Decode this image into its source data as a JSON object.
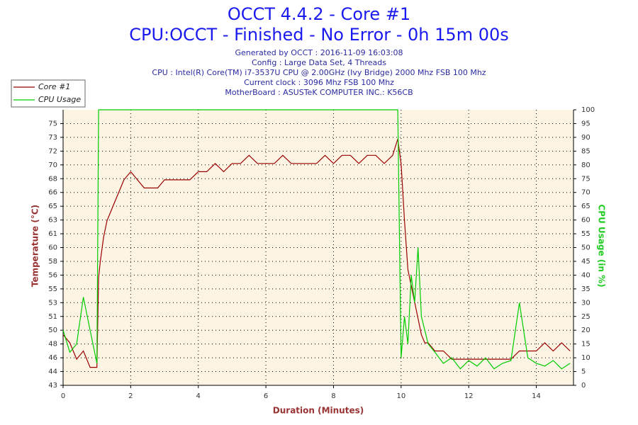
{
  "chart_data": {
    "type": "line",
    "title": "OCCT 4.4.2 - Core #1",
    "subtitle": "CPU:OCCT - Finished - No Error - 0h 15m 00s",
    "info": [
      "Generated by OCCT : 2016-11-09 16:03:08",
      "Config : Large Data Set, 4 Threads",
      "CPU : Intel(R) Core(TM) i7-3537U CPU @ 2.00GHz (Ivy Bridge) 2000 Mhz FSB 100 Mhz",
      "Current clock : 3096 Mhz FSB 100 Mhz",
      "MotherBoard : ASUSTeK COMPUTER INC.: K56CB"
    ],
    "x_label": "Duration (Minutes)",
    "y_label": "Temperature (°C)",
    "y2_label": "CPU Usage (in %)",
    "grid": true,
    "legend": "top-left",
    "xlim": [
      0,
      15.1
    ],
    "xticks": [
      0,
      2,
      4,
      6,
      8,
      10,
      12,
      14
    ],
    "ylim": [
      42.79,
      76.59
    ],
    "yticks": [
      {
        "value": 42.79,
        "label": "43"
      },
      {
        "value": 44.48,
        "label": "44"
      },
      {
        "value": 46.17,
        "label": "46"
      },
      {
        "value": 47.86,
        "label": "48"
      },
      {
        "value": 49.55,
        "label": "50"
      },
      {
        "value": 51.24,
        "label": "51"
      },
      {
        "value": 52.93,
        "label": "53"
      },
      {
        "value": 54.62,
        "label": "55"
      },
      {
        "value": 56.31,
        "label": "56"
      },
      {
        "value": 58.0,
        "label": "58"
      },
      {
        "value": 59.69,
        "label": "60"
      },
      {
        "value": 61.38,
        "label": "61"
      },
      {
        "value": 63.07,
        "label": "63"
      },
      {
        "value": 64.76,
        "label": "65"
      },
      {
        "value": 66.45,
        "label": "66"
      },
      {
        "value": 68.14,
        "label": "68"
      },
      {
        "value": 69.83,
        "label": "70"
      },
      {
        "value": 71.52,
        "label": "72"
      },
      {
        "value": 73.21,
        "label": "73"
      },
      {
        "value": 74.9,
        "label": "75"
      }
    ],
    "y2lim": [
      0,
      100
    ],
    "y2ticks": [
      0,
      5,
      10,
      15,
      20,
      25,
      30,
      35,
      40,
      45,
      50,
      55,
      60,
      65,
      70,
      75,
      80,
      85,
      90,
      95,
      100
    ],
    "x": [
      0,
      0.2,
      0.4,
      0.6,
      0.8,
      1.0,
      1.05,
      1.1,
      1.2,
      1.3,
      1.4,
      1.5,
      1.6,
      1.7,
      1.8,
      2.0,
      2.2,
      2.4,
      2.6,
      2.8,
      3.0,
      3.25,
      3.5,
      3.75,
      4.0,
      4.25,
      4.5,
      4.75,
      5.0,
      5.25,
      5.5,
      5.75,
      6.0,
      6.25,
      6.5,
      6.75,
      7.0,
      7.25,
      7.5,
      7.75,
      8.0,
      8.25,
      8.5,
      8.75,
      9.0,
      9.25,
      9.5,
      9.75,
      9.9,
      10.0,
      10.1,
      10.2,
      10.3,
      10.4,
      10.5,
      10.6,
      10.7,
      10.8,
      11.0,
      11.25,
      11.5,
      11.75,
      12.0,
      12.25,
      12.5,
      12.75,
      13.0,
      13.25,
      13.5,
      13.75,
      14.0,
      14.25,
      14.5,
      14.75,
      15.0
    ],
    "series": [
      {
        "name": "Core #1",
        "color": "#990000",
        "values": [
          49,
          48,
          46,
          47,
          45,
          45,
          56,
          58,
          61,
          63,
          64,
          65,
          66,
          67,
          68,
          69,
          68,
          67,
          67,
          67,
          68,
          68,
          68,
          68,
          69,
          69,
          70,
          69,
          70,
          70,
          71,
          70,
          70,
          70,
          71,
          70,
          70,
          70,
          70,
          71,
          70,
          71,
          71,
          70,
          71,
          71,
          70,
          71,
          73,
          70,
          63,
          57,
          55,
          53,
          51,
          49,
          48,
          48,
          47,
          47,
          46,
          46,
          46,
          46,
          46,
          46,
          46,
          46,
          47,
          47,
          47,
          48,
          47,
          48,
          47
        ]
      },
      {
        "name": "CPU Usage",
        "color": "#00cc00",
        "axis": "y2",
        "values": [
          20,
          12,
          15,
          32,
          20,
          8,
          100,
          100,
          100,
          100,
          100,
          100,
          100,
          100,
          100,
          100,
          100,
          100,
          100,
          100,
          100,
          100,
          100,
          100,
          100,
          100,
          100,
          100,
          100,
          100,
          100,
          100,
          100,
          100,
          100,
          100,
          100,
          100,
          100,
          100,
          100,
          100,
          100,
          100,
          100,
          100,
          100,
          100,
          100,
          10,
          25,
          15,
          40,
          30,
          50,
          25,
          20,
          15,
          12,
          8,
          10,
          6,
          9,
          7,
          10,
          6,
          8,
          9,
          30,
          10,
          8,
          7,
          9,
          6,
          8
        ]
      }
    ]
  }
}
